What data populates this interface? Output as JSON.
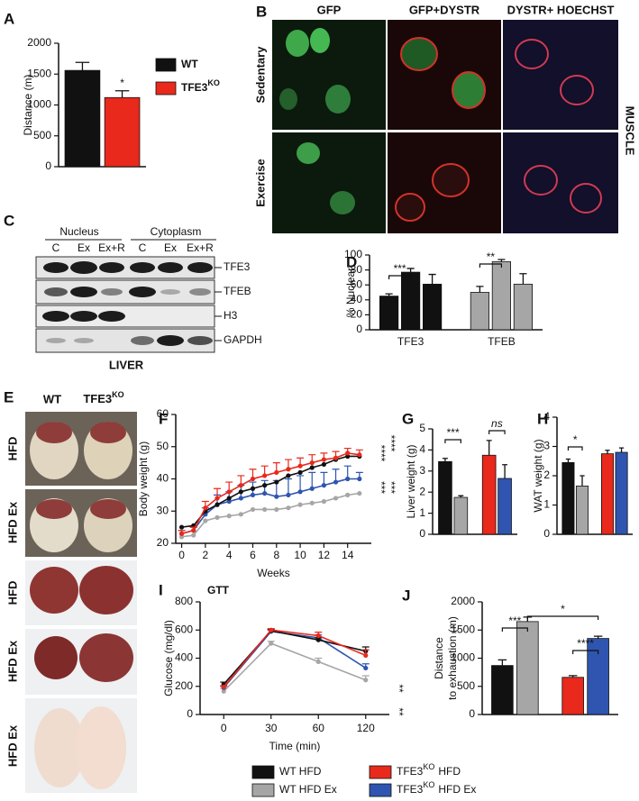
{
  "panel_labels": [
    "A",
    "B",
    "C",
    "D",
    "E",
    "F",
    "G",
    "H",
    "I",
    "J"
  ],
  "micrographs": {
    "columns": [
      "GFP",
      "GFP+DYSTR",
      "DYSTR+ HOECHST"
    ],
    "rows": [
      "Sedentary",
      "Exercise"
    ],
    "tissue": "MUSCLE"
  },
  "blot": {
    "groups": [
      "Nucleus",
      "Cytoplasm"
    ],
    "lanes": [
      "C",
      "Ex",
      "Ex+R",
      "C",
      "Ex",
      "Ex+R"
    ],
    "bands": [
      "TFE3",
      "TFEB",
      "H3",
      "GAPDH"
    ],
    "tissue": "LIVER"
  },
  "photos": {
    "columns": [
      {
        "text": "WT"
      },
      {
        "text": "TFE3",
        "sup": "KO"
      }
    ],
    "rows": [
      "HFD",
      "HFD Ex",
      "HFD",
      "HFD Ex",
      "HFD Ex"
    ]
  },
  "legend": [
    {
      "text": "WT HFD",
      "color": "#111111"
    },
    {
      "text": "WT HFD Ex",
      "color": "#a6a6a6"
    },
    {
      "text": "TFE3",
      "sup": "KO",
      "after": "HFD",
      "color": "#e8291c"
    },
    {
      "text": "TFE3",
      "sup": "KO",
      "after": "HFD Ex",
      "color": "#2f55b0"
    }
  ],
  "chart_data": [
    {
      "type": "bar",
      "ylabel": "Distance (m)",
      "ylim": [
        0,
        2000
      ],
      "yticks": [
        0,
        500,
        1000,
        1500,
        2000
      ],
      "series": [
        {
          "name": "WT",
          "color": "#111111",
          "values": [
            1560
          ],
          "errors": [
            130
          ]
        },
        {
          "name": "TFE3",
          "name_sup": "KO",
          "color": "#e8291c",
          "values": [
            1120
          ],
          "errors": [
            110
          ]
        }
      ],
      "annotations": [
        "*"
      ]
    },
    {
      "type": "bar",
      "ylabel": "% Nuclear",
      "ylim": [
        0,
        100
      ],
      "yticks": [
        0,
        20,
        40,
        60,
        80,
        100
      ],
      "categories": [
        "TFE3",
        "TFEB"
      ],
      "colors": [
        "#111111",
        "#a6a6a6"
      ],
      "series": [
        {
          "values": [
            45,
            50
          ],
          "errors": [
            3,
            8
          ]
        },
        {
          "values": [
            77,
            91
          ],
          "errors": [
            5,
            3
          ]
        },
        {
          "values": [
            61,
            61
          ],
          "errors": [
            13,
            14
          ]
        }
      ],
      "annotations": [
        "***",
        "**"
      ]
    },
    {
      "type": "line",
      "xlabel": "Weeks",
      "ylabel": "Body weight (g)",
      "x": [
        0,
        1,
        2,
        3,
        4,
        5,
        6,
        7,
        8,
        9,
        10,
        11,
        12,
        13,
        14,
        15
      ],
      "xlim": [
        -0.5,
        16
      ],
      "xticks": [
        0,
        2,
        4,
        6,
        8,
        10,
        12,
        14
      ],
      "ylim": [
        20,
        60
      ],
      "yticks": [
        20,
        30,
        40,
        50,
        60
      ],
      "series": [
        {
          "color": "#a6a6a6",
          "values": [
            22,
            22.5,
            27,
            28,
            28.5,
            29,
            30.5,
            30.5,
            30.5,
            31,
            32,
            32.5,
            33,
            34,
            35,
            35.5
          ]
        },
        {
          "color": "#2f55b0",
          "values": [
            23,
            24,
            29,
            32,
            33,
            34,
            35,
            35.5,
            34.5,
            35,
            36,
            37,
            38,
            39,
            40,
            40
          ],
          "errors": [
            1,
            1,
            2,
            3,
            3,
            4,
            4,
            4,
            5,
            5,
            5,
            5,
            4,
            4,
            4,
            2
          ]
        },
        {
          "color": "#111111",
          "values": [
            25,
            25.5,
            30,
            32,
            34,
            36,
            37,
            38,
            39,
            41,
            42,
            43.5,
            44.5,
            46,
            47,
            47
          ]
        },
        {
          "color": "#e8291c",
          "values": [
            23,
            24,
            31,
            34,
            36,
            38,
            40,
            41,
            42,
            43,
            44,
            45,
            46,
            46.5,
            48,
            47.5
          ],
          "errors": [
            1,
            1,
            2,
            3,
            3,
            3,
            3,
            3,
            3,
            3,
            2.5,
            2.5,
            2,
            2,
            1.5,
            1.5
          ]
        }
      ],
      "significance": [
        "****",
        "****",
        "***",
        "***"
      ]
    },
    {
      "type": "bar",
      "ylabel": "Liver weight (g)",
      "ylim": [
        0,
        5
      ],
      "yticks": [
        0,
        1,
        2,
        3,
        4,
        5
      ],
      "values": [
        3.45,
        1.75,
        3.75,
        2.65
      ],
      "errors": [
        0.15,
        0.08,
        0.7,
        0.65
      ],
      "colors": [
        "#111111",
        "#a6a6a6",
        "#e8291c",
        "#2f55b0"
      ],
      "annotations": [
        "***",
        "ns"
      ]
    },
    {
      "type": "bar",
      "ylabel": "WAT weight (g)",
      "ylim": [
        0,
        4
      ],
      "yticks": [
        0,
        1,
        2,
        3,
        4
      ],
      "values": [
        2.45,
        1.65,
        2.75,
        2.8
      ],
      "errors": [
        0.12,
        0.35,
        0.12,
        0.15
      ],
      "colors": [
        "#111111",
        "#a6a6a6",
        "#e8291c",
        "#2f55b0"
      ],
      "annotations": [
        "*"
      ]
    },
    {
      "type": "line",
      "title": "GTT",
      "xlabel": "Time (min)",
      "ylabel": "Glucose (mg/dl)",
      "categories": [
        "0",
        "30",
        "60",
        "120"
      ],
      "ylim": [
        0,
        800
      ],
      "yticks": [
        0,
        200,
        400,
        600,
        800
      ],
      "series": [
        {
          "color": "#a6a6a6",
          "values": [
            165,
            505,
            375,
            245
          ],
          "errors": [
            20,
            15,
            25,
            30
          ]
        },
        {
          "color": "#2f55b0",
          "values": [
            190,
            590,
            545,
            330
          ],
          "errors": [
            10,
            10,
            20,
            30
          ]
        },
        {
          "color": "#111111",
          "values": [
            215,
            595,
            530,
            450
          ],
          "errors": [
            15,
            10,
            15,
            30
          ]
        },
        {
          "color": "#e8291c",
          "values": [
            195,
            600,
            560,
            420
          ],
          "errors": [
            10,
            10,
            25,
            40
          ]
        }
      ],
      "significance": [
        "**",
        "**"
      ]
    },
    {
      "type": "bar",
      "ylabel": [
        "Distance",
        "to exhaustion (m)"
      ],
      "ylim": [
        0,
        2000
      ],
      "yticks": [
        0,
        500,
        1000,
        1500,
        2000
      ],
      "values": [
        870,
        1650,
        660,
        1350
      ],
      "errors": [
        100,
        80,
        30,
        40
      ],
      "colors": [
        "#111111",
        "#a6a6a6",
        "#e8291c",
        "#2f55b0"
      ],
      "annotations": [
        "***",
        "****",
        "*"
      ]
    }
  ]
}
